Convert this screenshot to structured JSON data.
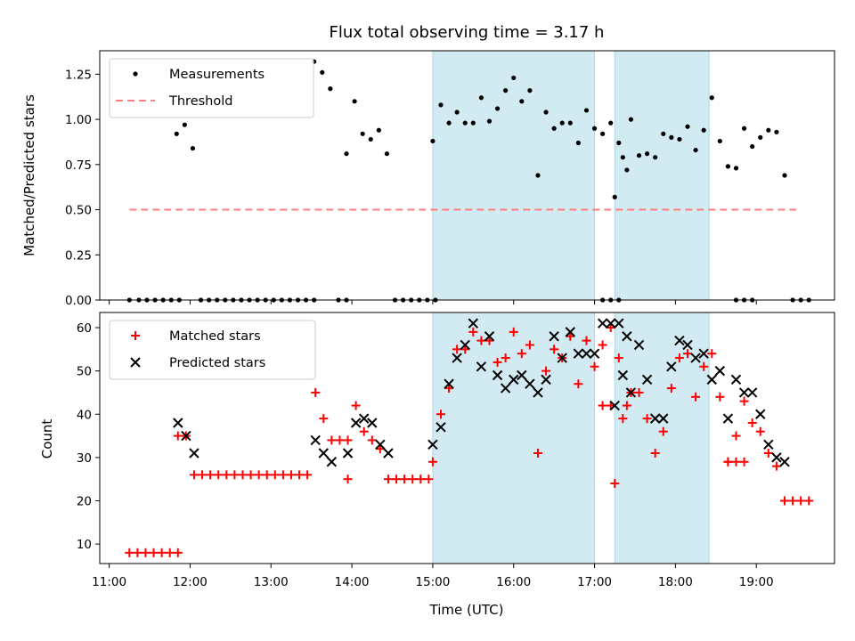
{
  "chart_data": [
    {
      "type": "scatter",
      "title": "Flux total observing time = 3.17 h",
      "xlabel": "",
      "ylabel": "Matched/Predicted stars",
      "ylim": [
        0,
        1.38
      ],
      "yticks": [
        "0.00",
        "0.25",
        "0.50",
        "0.75",
        "1.00",
        "1.25"
      ],
      "shaded_regions": [
        [
          "15:00",
          "17:00"
        ],
        [
          "17:15",
          "18:25"
        ]
      ],
      "legend": [
        {
          "label": "Measurements",
          "style": "black-dot"
        },
        {
          "label": "Threshold",
          "style": "red-dashed"
        }
      ],
      "legend_position": "top-left",
      "colors": {
        "measurements": "#000000",
        "threshold": "#ff7f7f",
        "shade": "#add8e6"
      },
      "threshold": {
        "value": 0.5,
        "x_range": [
          "11:15",
          "19:30"
        ]
      },
      "series": [
        {
          "name": "Measurements",
          "points": [
            [
              "11:15",
              0
            ],
            [
              "11:22",
              0
            ],
            [
              "11:28",
              0
            ],
            [
              "11:34",
              0
            ],
            [
              "11:40",
              0
            ],
            [
              "11:46",
              0
            ],
            [
              "11:52",
              0
            ],
            [
              "11:50",
              0.92
            ],
            [
              "11:56",
              0.97
            ],
            [
              "12:02",
              0.84
            ],
            [
              "12:08",
              0
            ],
            [
              "12:14",
              0
            ],
            [
              "12:20",
              0
            ],
            [
              "12:26",
              0
            ],
            [
              "12:32",
              0
            ],
            [
              "12:38",
              0
            ],
            [
              "12:44",
              0
            ],
            [
              "12:50",
              0
            ],
            [
              "12:56",
              0
            ],
            [
              "13:02",
              0
            ],
            [
              "13:08",
              0
            ],
            [
              "13:14",
              0
            ],
            [
              "13:20",
              0
            ],
            [
              "13:26",
              0
            ],
            [
              "13:32",
              0
            ],
            [
              "13:32",
              1.32
            ],
            [
              "13:38",
              1.26
            ],
            [
              "13:44",
              1.17
            ],
            [
              "13:50",
              0
            ],
            [
              "13:56",
              0
            ],
            [
              "13:56",
              0.81
            ],
            [
              "14:02",
              1.1
            ],
            [
              "14:08",
              0.92
            ],
            [
              "14:14",
              0.89
            ],
            [
              "14:20",
              0.94
            ],
            [
              "14:26",
              0.81
            ],
            [
              "14:32",
              0
            ],
            [
              "14:38",
              0
            ],
            [
              "14:44",
              0
            ],
            [
              "14:50",
              0
            ],
            [
              "14:56",
              0
            ],
            [
              "15:02",
              0
            ],
            [
              "15:00",
              0.88
            ],
            [
              "15:06",
              1.08
            ],
            [
              "15:12",
              0.98
            ],
            [
              "15:18",
              1.04
            ],
            [
              "15:24",
              0.98
            ],
            [
              "15:30",
              0.98
            ],
            [
              "15:36",
              1.12
            ],
            [
              "15:42",
              0.99
            ],
            [
              "15:48",
              1.06
            ],
            [
              "15:54",
              1.16
            ],
            [
              "16:00",
              1.23
            ],
            [
              "16:06",
              1.1
            ],
            [
              "16:12",
              1.16
            ],
            [
              "16:18",
              0.69
            ],
            [
              "16:24",
              1.04
            ],
            [
              "16:30",
              0.95
            ],
            [
              "16:36",
              0.98
            ],
            [
              "16:42",
              0.98
            ],
            [
              "16:48",
              0.87
            ],
            [
              "16:54",
              1.05
            ],
            [
              "17:00",
              0.95
            ],
            [
              "17:06",
              0.92
            ],
            [
              "17:12",
              0.98
            ],
            [
              "17:18",
              0.87
            ],
            [
              "17:24",
              0.72
            ],
            [
              "17:06",
              0
            ],
            [
              "17:12",
              0
            ],
            [
              "17:18",
              0
            ],
            [
              "17:15",
              0.57
            ],
            [
              "17:21",
              0.79
            ],
            [
              "17:27",
              1.0
            ],
            [
              "17:33",
              0.8
            ],
            [
              "17:39",
              0.81
            ],
            [
              "17:45",
              0.79
            ],
            [
              "17:51",
              0.92
            ],
            [
              "17:57",
              0.9
            ],
            [
              "18:03",
              0.89
            ],
            [
              "18:09",
              0.96
            ],
            [
              "18:15",
              0.83
            ],
            [
              "18:21",
              0.94
            ],
            [
              "18:27",
              1.12
            ],
            [
              "18:33",
              0.88
            ],
            [
              "18:39",
              0.74
            ],
            [
              "18:45",
              0
            ],
            [
              "18:51",
              0
            ],
            [
              "18:57",
              0
            ],
            [
              "18:45",
              0.73
            ],
            [
              "18:51",
              0.95
            ],
            [
              "18:57",
              0.85
            ],
            [
              "19:03",
              0.9
            ],
            [
              "19:09",
              0.94
            ],
            [
              "19:15",
              0.93
            ],
            [
              "19:21",
              0.69
            ],
            [
              "19:27",
              0
            ],
            [
              "19:33",
              0
            ],
            [
              "19:39",
              0
            ]
          ]
        }
      ]
    },
    {
      "type": "scatter",
      "title": "",
      "xlabel": "Time (UTC)",
      "ylabel": "Count",
      "ylim": [
        5.5,
        63.5
      ],
      "yticks": [
        "10",
        "20",
        "30",
        "40",
        "50",
        "60"
      ],
      "xticks": [
        "11:00",
        "12:00",
        "13:00",
        "14:00",
        "15:00",
        "16:00",
        "17:00",
        "18:00",
        "19:00"
      ],
      "shaded_regions": [
        [
          "15:00",
          "17:00"
        ],
        [
          "17:15",
          "18:25"
        ]
      ],
      "legend": [
        {
          "label": "Matched stars",
          "style": "red-plus"
        },
        {
          "label": "Predicted stars",
          "style": "black-x"
        }
      ],
      "legend_position": "top-left",
      "colors": {
        "matched": "#ff0000",
        "predicted": "#000000",
        "shade": "#add8e6"
      },
      "series": [
        {
          "name": "Matched stars",
          "points": [
            [
              "11:15",
              8
            ],
            [
              "11:21",
              8
            ],
            [
              "11:27",
              8
            ],
            [
              "11:33",
              8
            ],
            [
              "11:39",
              8
            ],
            [
              "11:45",
              8
            ],
            [
              "11:51",
              8
            ],
            [
              "11:51",
              35
            ],
            [
              "11:57",
              35
            ],
            [
              "12:03",
              26
            ],
            [
              "12:09",
              26
            ],
            [
              "12:15",
              26
            ],
            [
              "12:21",
              26
            ],
            [
              "12:27",
              26
            ],
            [
              "12:33",
              26
            ],
            [
              "12:39",
              26
            ],
            [
              "12:45",
              26
            ],
            [
              "12:51",
              26
            ],
            [
              "12:57",
              26
            ],
            [
              "13:03",
              26
            ],
            [
              "13:09",
              26
            ],
            [
              "13:15",
              26
            ],
            [
              "13:21",
              26
            ],
            [
              "13:27",
              26
            ],
            [
              "13:33",
              45
            ],
            [
              "13:39",
              39
            ],
            [
              "13:45",
              34
            ],
            [
              "13:51",
              34
            ],
            [
              "13:57",
              34
            ],
            [
              "13:57",
              25
            ],
            [
              "14:03",
              42
            ],
            [
              "14:09",
              36
            ],
            [
              "14:15",
              34
            ],
            [
              "14:21",
              32
            ],
            [
              "14:27",
              25
            ],
            [
              "14:33",
              25
            ],
            [
              "14:39",
              25
            ],
            [
              "14:45",
              25
            ],
            [
              "14:51",
              25
            ],
            [
              "14:57",
              25
            ],
            [
              "15:00",
              29
            ],
            [
              "15:06",
              40
            ],
            [
              "15:12",
              46
            ],
            [
              "15:18",
              55
            ],
            [
              "15:24",
              55
            ],
            [
              "15:30",
              59
            ],
            [
              "15:36",
              57
            ],
            [
              "15:42",
              57
            ],
            [
              "15:48",
              52
            ],
            [
              "15:54",
              53
            ],
            [
              "16:00",
              59
            ],
            [
              "16:06",
              54
            ],
            [
              "16:12",
              56
            ],
            [
              "16:18",
              31
            ],
            [
              "16:24",
              50
            ],
            [
              "16:30",
              55
            ],
            [
              "16:36",
              53
            ],
            [
              "16:42",
              58
            ],
            [
              "16:48",
              47
            ],
            [
              "16:54",
              57
            ],
            [
              "17:00",
              51
            ],
            [
              "17:06",
              56
            ],
            [
              "17:12",
              60
            ],
            [
              "17:18",
              53
            ],
            [
              "17:24",
              42
            ],
            [
              "17:06",
              42
            ],
            [
              "17:12",
              42
            ],
            [
              "17:15",
              24
            ],
            [
              "17:21",
              39
            ],
            [
              "17:27",
              45
            ],
            [
              "17:33",
              45
            ],
            [
              "17:39",
              39
            ],
            [
              "17:45",
              31
            ],
            [
              "17:51",
              36
            ],
            [
              "17:57",
              46
            ],
            [
              "18:03",
              53
            ],
            [
              "18:09",
              54
            ],
            [
              "18:15",
              44
            ],
            [
              "18:21",
              51
            ],
            [
              "18:27",
              54
            ],
            [
              "18:33",
              44
            ],
            [
              "18:39",
              29
            ],
            [
              "18:39",
              29
            ],
            [
              "18:45",
              29
            ],
            [
              "18:51",
              29
            ],
            [
              "18:45",
              35
            ],
            [
              "18:51",
              43
            ],
            [
              "18:57",
              38
            ],
            [
              "19:03",
              36
            ],
            [
              "19:09",
              31
            ],
            [
              "19:15",
              28
            ],
            [
              "19:21",
              20
            ],
            [
              "19:27",
              20
            ],
            [
              "19:33",
              20
            ],
            [
              "19:39",
              20
            ]
          ]
        },
        {
          "name": "Predicted stars",
          "points": [
            [
              "11:51",
              38
            ],
            [
              "11:57",
              35
            ],
            [
              "12:03",
              31
            ],
            [
              "13:33",
              34
            ],
            [
              "13:39",
              31
            ],
            [
              "13:45",
              29
            ],
            [
              "13:57",
              31
            ],
            [
              "14:03",
              38
            ],
            [
              "14:09",
              39
            ],
            [
              "14:15",
              38
            ],
            [
              "14:21",
              33
            ],
            [
              "14:27",
              31
            ],
            [
              "15:00",
              33
            ],
            [
              "15:06",
              37
            ],
            [
              "15:12",
              47
            ],
            [
              "15:18",
              53
            ],
            [
              "15:24",
              56
            ],
            [
              "15:30",
              61
            ],
            [
              "15:36",
              51
            ],
            [
              "15:42",
              58
            ],
            [
              "15:48",
              49
            ],
            [
              "15:54",
              46
            ],
            [
              "16:00",
              48
            ],
            [
              "16:06",
              49
            ],
            [
              "16:12",
              47
            ],
            [
              "16:18",
              45
            ],
            [
              "16:24",
              48
            ],
            [
              "16:30",
              58
            ],
            [
              "16:36",
              53
            ],
            [
              "16:42",
              59
            ],
            [
              "16:48",
              54
            ],
            [
              "16:54",
              54
            ],
            [
              "17:00",
              54
            ],
            [
              "17:06",
              61
            ],
            [
              "17:12",
              61
            ],
            [
              "17:18",
              61
            ],
            [
              "17:24",
              58
            ],
            [
              "17:15",
              42
            ],
            [
              "17:21",
              49
            ],
            [
              "17:27",
              45
            ],
            [
              "17:33",
              56
            ],
            [
              "17:39",
              48
            ],
            [
              "17:45",
              39
            ],
            [
              "17:51",
              39
            ],
            [
              "17:57",
              51
            ],
            [
              "18:03",
              57
            ],
            [
              "18:09",
              56
            ],
            [
              "18:15",
              53
            ],
            [
              "18:21",
              54
            ],
            [
              "18:27",
              48
            ],
            [
              "18:33",
              50
            ],
            [
              "18:39",
              39
            ],
            [
              "18:45",
              48
            ],
            [
              "18:51",
              45
            ],
            [
              "18:57",
              45
            ],
            [
              "19:03",
              40
            ],
            [
              "19:09",
              33
            ],
            [
              "19:15",
              30
            ],
            [
              "19:21",
              29
            ]
          ]
        }
      ]
    }
  ]
}
